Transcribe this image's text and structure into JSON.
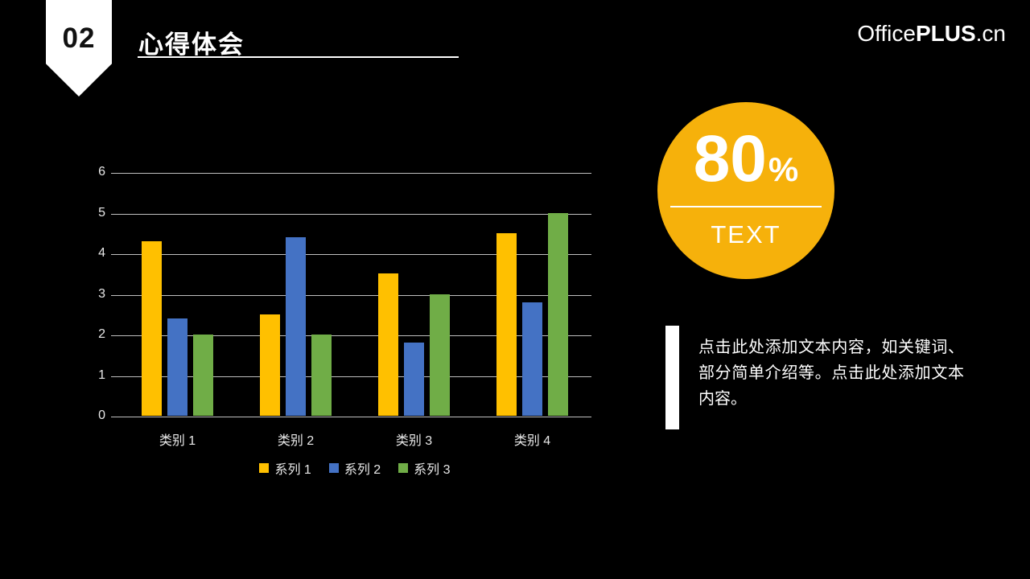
{
  "slide": {
    "badge_number": "02",
    "title": "心得体会",
    "logo": {
      "office": "Office",
      "plus": "PLUS",
      "cn": ".cn"
    }
  },
  "chart_data": {
    "type": "bar",
    "title": "",
    "xlabel": "",
    "ylabel": "",
    "categories": [
      "类别 1",
      "类别 2",
      "类别 3",
      "类别 4"
    ],
    "series": [
      {
        "name": "系列 1",
        "color": "#FFC000",
        "values": [
          4.3,
          2.5,
          3.5,
          4.5
        ]
      },
      {
        "name": "系列 2",
        "color": "#4472C4",
        "values": [
          2.4,
          4.4,
          1.8,
          2.8
        ]
      },
      {
        "name": "系列 3",
        "color": "#70AD47",
        "values": [
          2.0,
          2.0,
          3.0,
          5.0
        ]
      }
    ],
    "ylim": [
      0,
      6
    ],
    "yticks": [
      0,
      1,
      2,
      3,
      4,
      5,
      6
    ],
    "grid": true,
    "legend_position": "bottom",
    "gridline_color": "#BFBFBF",
    "label_color": "#E8E8E8"
  },
  "highlight": {
    "percent_value": "80",
    "percent_sign": "%",
    "label": "TEXT",
    "circle_color": "#F6B10B"
  },
  "body_text": {
    "content": "点击此处添加文本内容，如关键词、部分简单介绍等。点击此处添加文本内容。"
  }
}
